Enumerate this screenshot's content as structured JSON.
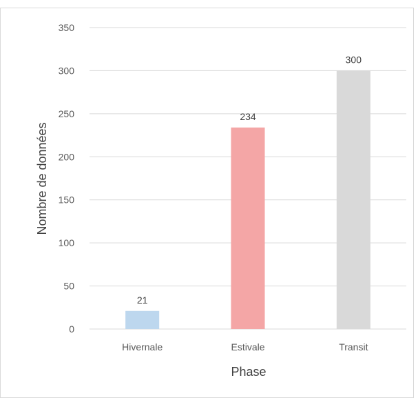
{
  "chart_data": {
    "type": "bar",
    "title": "",
    "xlabel": "Phase",
    "ylabel": "Nombre de données",
    "categories": [
      "Hivernale",
      "Estivale",
      "Transit"
    ],
    "values": [
      21,
      234,
      300
    ],
    "data_labels": [
      "21",
      "234",
      "300"
    ],
    "bar_colors": [
      "#bdd7ee",
      "#f4a6a6",
      "#d9d9d9"
    ],
    "ylim": [
      0,
      350
    ],
    "yticks": [
      0,
      50,
      100,
      150,
      200,
      250,
      300,
      350
    ],
    "grid": true,
    "legend": "none"
  }
}
